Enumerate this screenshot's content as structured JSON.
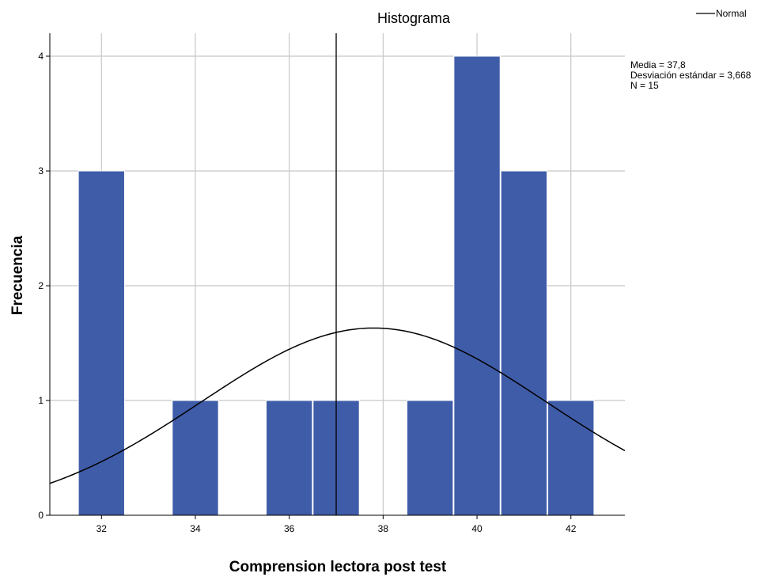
{
  "chart_data": {
    "type": "bar",
    "title": "Histograma",
    "xlabel": "Comprension lectora post test",
    "ylabel": "Frecuencia",
    "xlim": [
      30.9,
      43.15
    ],
    "ylim": [
      0,
      4.2
    ],
    "x_ticks": [
      32,
      34,
      36,
      38,
      40,
      42
    ],
    "y_ticks": [
      0,
      1,
      2,
      3,
      4
    ],
    "grid": true,
    "bar_width": 1,
    "series": [
      {
        "values": [
          {
            "x": 32,
            "y": 3
          },
          {
            "x": 34,
            "y": 1
          },
          {
            "x": 36,
            "y": 1
          },
          {
            "x": 37,
            "y": 1
          },
          {
            "x": 39,
            "y": 1
          },
          {
            "x": 40,
            "y": 4
          },
          {
            "x": 41,
            "y": 3
          },
          {
            "x": 42,
            "y": 1
          }
        ],
        "color": "#3f5ca8"
      }
    ],
    "reference_line_x": 37,
    "normal_curve": {
      "mean": 37.8,
      "sd": 3.668,
      "n": 15,
      "bin_width": 1,
      "label": "Normal"
    },
    "stats": [
      "Media = 37,8",
      "Desviación estándar = 3,668",
      "N = 15"
    ],
    "legend_position": "top-right"
  }
}
